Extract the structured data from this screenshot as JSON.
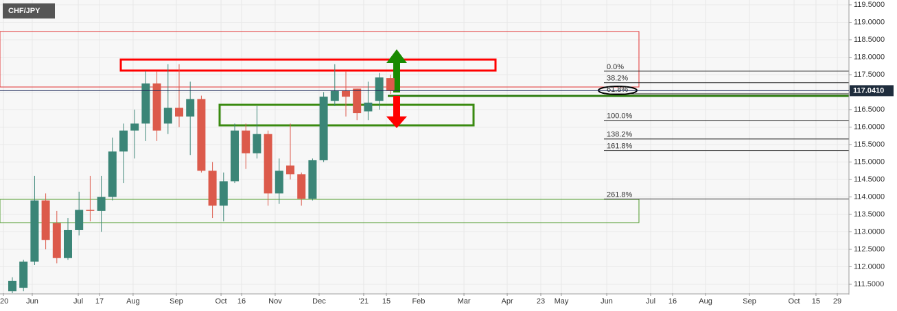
{
  "chart_data": {
    "type": "candlestick",
    "title": "CHF/JPY",
    "x": [
      0,
      1,
      2,
      3,
      4,
      5,
      6,
      7,
      8,
      9,
      10,
      11,
      12,
      13,
      14,
      15,
      16,
      17,
      18,
      19,
      20,
      21,
      22,
      23,
      24,
      25,
      26,
      27,
      28,
      29,
      30,
      31,
      32,
      33,
      34
    ],
    "open": [
      111.3,
      111.4,
      112.15,
      113.9,
      113.25,
      112.25,
      113.05,
      113.63,
      113.6,
      114.0,
      115.3,
      115.9,
      116.1,
      117.25,
      116.1,
      116.55,
      116.3,
      116.8,
      114.75,
      113.75,
      114.45,
      115.9,
      115.25,
      115.8,
      114.1,
      114.9,
      114.65,
      113.95,
      115.05,
      116.75,
      117.05,
      117.1,
      116.45,
      116.75,
      117.4
    ],
    "high": [
      111.7,
      112.2,
      114.6,
      114.1,
      113.6,
      113.4,
      114.15,
      114.6,
      114.6,
      115.7,
      116.1,
      116.5,
      117.6,
      117.6,
      117.8,
      117.8,
      117.3,
      116.9,
      115.0,
      114.7,
      116.1,
      116.1,
      116.6,
      115.9,
      115.1,
      116.1,
      114.7,
      115.1,
      117.0,
      117.8,
      117.6,
      117.1,
      117.3,
      117.55,
      117.5
    ],
    "low": [
      111.2,
      111.3,
      112.05,
      112.5,
      112.1,
      112.2,
      112.9,
      113.3,
      113.0,
      113.9,
      114.4,
      115.1,
      115.6,
      115.6,
      115.8,
      116.0,
      115.2,
      114.7,
      113.4,
      113.3,
      114.4,
      114.8,
      115.1,
      113.75,
      113.8,
      114.5,
      113.75,
      113.9,
      115.0,
      116.6,
      116.3,
      116.2,
      116.2,
      116.5,
      116.95
    ],
    "close": [
      111.6,
      112.15,
      113.9,
      112.77,
      112.25,
      113.05,
      113.63,
      113.6,
      114.0,
      115.3,
      115.9,
      116.1,
      117.25,
      115.9,
      116.55,
      116.3,
      116.8,
      114.75,
      113.75,
      114.45,
      115.9,
      115.25,
      115.8,
      114.1,
      114.75,
      114.65,
      113.95,
      115.05,
      116.87,
      117.05,
      116.87,
      116.4,
      116.7,
      117.42,
      117.05
    ],
    "up_color": "#3b8577",
    "down_color": "#dc5a4b",
    "xlim": [
      -1.111,
      75.247
    ],
    "ylim": [
      111.245,
      119.637
    ],
    "xticks": [
      {
        "value": -0.8,
        "label": "'20"
      },
      {
        "value": 1.79,
        "label": "Jun"
      },
      {
        "value": 5.93,
        "label": "Jul"
      },
      {
        "value": 7.84,
        "label": "17"
      },
      {
        "value": 10.86,
        "label": "Aug"
      },
      {
        "value": 14.75,
        "label": "Sep"
      },
      {
        "value": 18.77,
        "label": "Oct"
      },
      {
        "value": 20.62,
        "label": "16"
      },
      {
        "value": 23.64,
        "label": "Nov"
      },
      {
        "value": 27.59,
        "label": "Dec"
      },
      {
        "value": 31.6,
        "label": "'21"
      },
      {
        "value": 33.64,
        "label": "15"
      },
      {
        "value": 36.54,
        "label": "Feb"
      },
      {
        "value": 40.62,
        "label": "Mar"
      },
      {
        "value": 44.51,
        "label": "Apr"
      },
      {
        "value": 47.53,
        "label": "23"
      },
      {
        "value": 49.38,
        "label": "May"
      },
      {
        "value": 53.46,
        "label": "Jun"
      },
      {
        "value": 57.41,
        "label": "Jul"
      },
      {
        "value": 59.38,
        "label": "16"
      },
      {
        "value": 62.35,
        "label": "Aug"
      },
      {
        "value": 66.3,
        "label": "Sep"
      },
      {
        "value": 70.31,
        "label": "Oct"
      },
      {
        "value": 72.28,
        "label": "15"
      },
      {
        "value": 74.2,
        "label": "29"
      }
    ],
    "yticks": [
      {
        "value": 111.5,
        "label": "111.5000"
      },
      {
        "value": 112.0,
        "label": "112.0000"
      },
      {
        "value": 112.5,
        "label": "112.5000"
      },
      {
        "value": 113.0,
        "label": "113.0000"
      },
      {
        "value": 113.5,
        "label": "113.5000"
      },
      {
        "value": 114.0,
        "label": "114.0000"
      },
      {
        "value": 114.5,
        "label": "114.5000"
      },
      {
        "value": 115.0,
        "label": "115.0000"
      },
      {
        "value": 115.5,
        "label": "115.5000"
      },
      {
        "value": 116.0,
        "label": "116.0000"
      },
      {
        "value": 116.5,
        "label": "116.5000"
      },
      {
        "value": 117.0,
        "label": "117.0000"
      },
      {
        "value": 117.5,
        "label": "117.5000"
      },
      {
        "value": 118.0,
        "label": "118.0000"
      },
      {
        "value": 118.5,
        "label": "118.5000"
      },
      {
        "value": 119.0,
        "label": "119.0000"
      },
      {
        "value": 119.5,
        "label": "119.5000"
      }
    ],
    "grid": true,
    "last_price": {
      "value": 117.041,
      "label": "117.0410"
    },
    "fib_levels": [
      {
        "value": 117.6,
        "label": "0.0%"
      },
      {
        "value": 117.27,
        "label": "38.2%"
      },
      {
        "value": 116.95,
        "label": "61.8%"
      },
      {
        "value": 116.19,
        "label": "100.0%"
      },
      {
        "value": 115.66,
        "label": "138.2%"
      },
      {
        "value": 115.33,
        "label": "161.8%"
      },
      {
        "value": 113.94,
        "label": "261.8%"
      }
    ]
  }
}
